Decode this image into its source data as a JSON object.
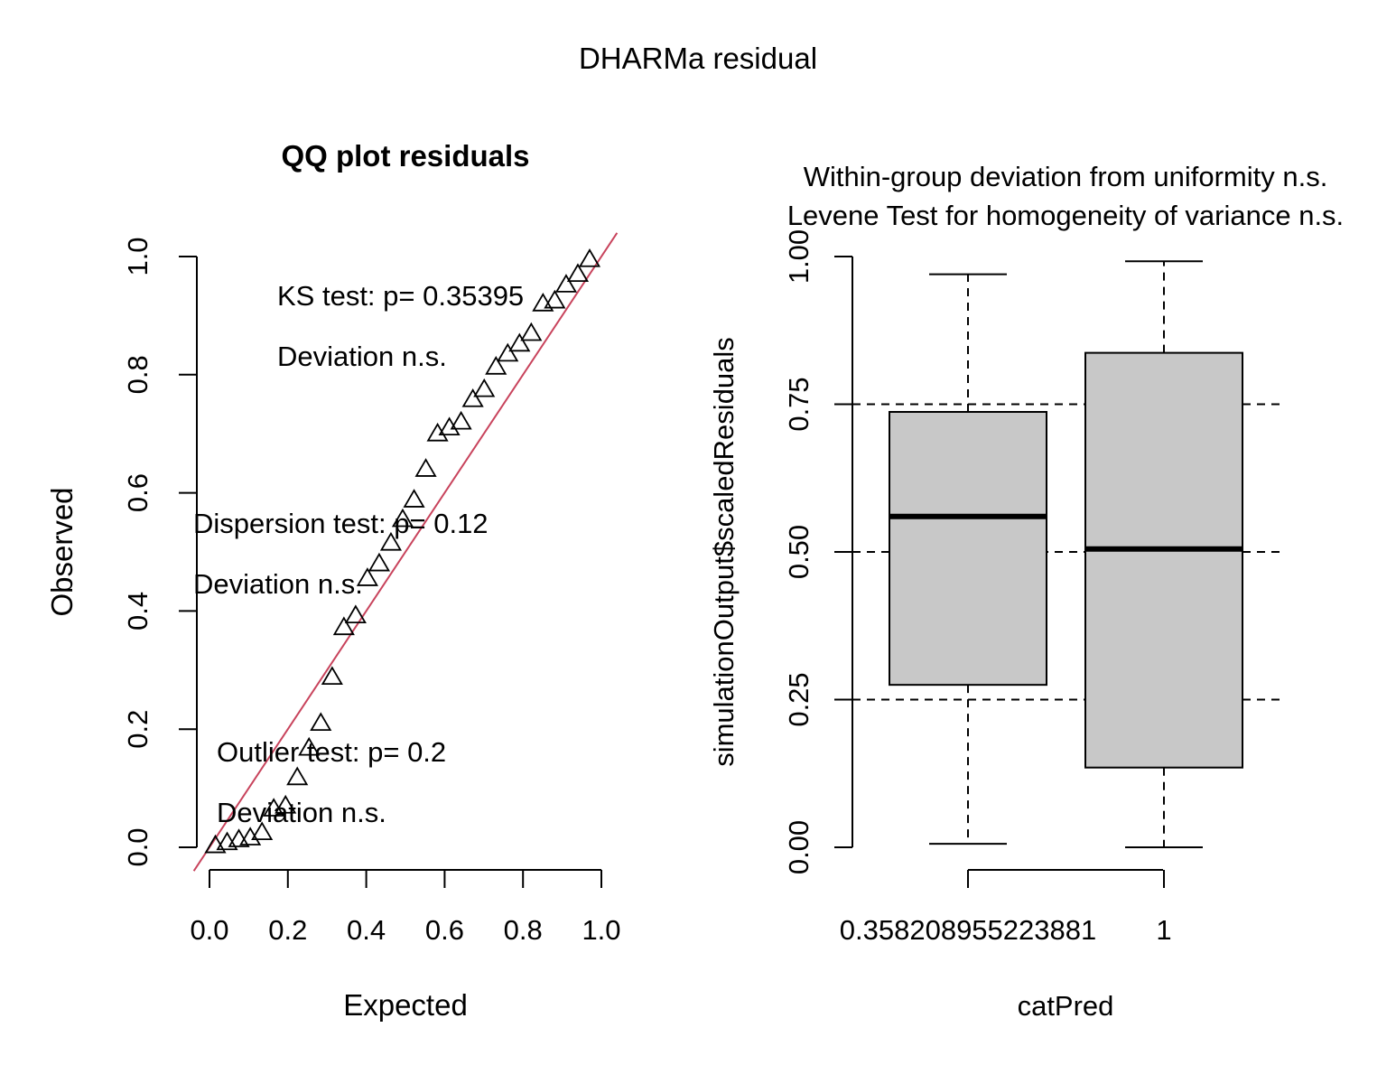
{
  "page_title": "DHARMa residual",
  "chart_data": [
    {
      "type": "scatter",
      "title": "QQ plot residuals",
      "xlabel": "Expected",
      "ylabel": "Observed",
      "xlim": [
        0,
        1
      ],
      "ylim": [
        0,
        1
      ],
      "x_ticks": [
        "0.0",
        "0.2",
        "0.4",
        "0.6",
        "0.8",
        "1.0"
      ],
      "y_ticks": [
        "0.0",
        "0.2",
        "0.4",
        "0.6",
        "0.8",
        "1.0"
      ],
      "reference_line": {
        "intercept": 0,
        "slope": 1,
        "color": "#c8435c"
      },
      "marker": "triangle",
      "series": [
        {
          "x": [
            0.015,
            0.045,
            0.075,
            0.104,
            0.134,
            0.164,
            0.194,
            0.224,
            0.254,
            0.284,
            0.313,
            0.343,
            0.373,
            0.403,
            0.433,
            0.463,
            0.493,
            0.522,
            0.552,
            0.582,
            0.612,
            0.642,
            0.672,
            0.701,
            0.731,
            0.761,
            0.791,
            0.821,
            0.851,
            0.881,
            0.91,
            0.94,
            0.97
          ],
          "y": [
            0.003,
            0.008,
            0.013,
            0.016,
            0.025,
            0.065,
            0.07,
            0.118,
            0.168,
            0.21,
            0.288,
            0.372,
            0.392,
            0.455,
            0.48,
            0.515,
            0.555,
            0.588,
            0.64,
            0.7,
            0.71,
            0.72,
            0.758,
            0.775,
            0.813,
            0.835,
            0.852,
            0.87,
            0.92,
            0.925,
            0.952,
            0.97,
            0.995
          ]
        }
      ],
      "annotations": [
        {
          "text": "KS test: p= 0.35395"
        },
        {
          "text": "Deviation  n.s."
        },
        {
          "text": "Dispersion test: p= 0.12"
        },
        {
          "text": "Deviation  n.s."
        },
        {
          "text": "Outlier test: p= 0.2"
        },
        {
          "text": "Deviation  n.s."
        }
      ]
    },
    {
      "type": "boxplot",
      "title_line1": "Within-group deviation from uniformity n.s.",
      "title_line2": "Levene Test for homogeneity of variance n.s.",
      "xlabel": "catPred",
      "ylabel": "simulationOutput$scaledResiduals",
      "ylim": [
        0,
        1
      ],
      "y_ticks": [
        "0.00",
        "0.25",
        "0.50",
        "0.75",
        "1.00"
      ],
      "reference_lines": [
        0.25,
        0.5,
        0.75
      ],
      "box_fill": "#c8c8c8",
      "categories": [
        "0.358208955223881",
        "1"
      ],
      "boxes": [
        {
          "min": 0.006,
          "q1": 0.275,
          "median": 0.56,
          "q3": 0.737,
          "max": 0.97
        },
        {
          "min": 0.0,
          "q1": 0.135,
          "median": 0.505,
          "q3": 0.837,
          "max": 0.992
        }
      ]
    }
  ]
}
